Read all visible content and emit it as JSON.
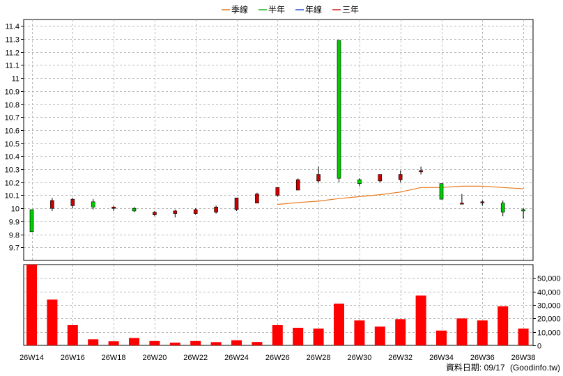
{
  "chart_data": {
    "type": "candlestick",
    "legend": [
      {
        "name": "季線",
        "color": "#e87a1e"
      },
      {
        "name": "半年",
        "color": "#22aa22"
      },
      {
        "name": "年線",
        "color": "#2255cc"
      },
      {
        "name": "三年",
        "color": "#cc2222"
      }
    ],
    "legend_position": "top-center",
    "grid": true,
    "price_axis": {
      "ylim": [
        9.6,
        11.45
      ],
      "ticks": [
        "9.7",
        "9.8",
        "9.9",
        "10",
        "10.1",
        "10.2",
        "10.3",
        "10.4",
        "10.5",
        "10.6",
        "10.7",
        "10.8",
        "10.9",
        "11",
        "11.1",
        "11.2",
        "11.3",
        "11.4"
      ]
    },
    "volume_axis": {
      "ylim": [
        0,
        60000
      ],
      "ticks": [
        "0",
        "10,000",
        "20,000",
        "30,000",
        "40,000",
        "50,000"
      ]
    },
    "x_tick_labels": [
      "26W14",
      "26W16",
      "26W18",
      "26W20",
      "26W22",
      "26W24",
      "26W26",
      "26W28",
      "26W30",
      "26W32",
      "26W34",
      "26W36",
      "26W38"
    ],
    "candles": [
      {
        "week": "26W14",
        "open": 9.99,
        "high": 9.99,
        "low": 9.82,
        "close": 9.82,
        "volume": 60000
      },
      {
        "week": "26W15",
        "open": 10.0,
        "high": 10.08,
        "low": 9.98,
        "close": 10.06,
        "volume": 34000
      },
      {
        "week": "26W16",
        "open": 10.02,
        "high": 10.08,
        "low": 10.0,
        "close": 10.07,
        "volume": 15000
      },
      {
        "week": "26W17",
        "open": 10.05,
        "high": 10.07,
        "low": 9.99,
        "close": 10.01,
        "volume": 4500
      },
      {
        "week": "26W18",
        "open": 10.0,
        "high": 10.02,
        "low": 9.98,
        "close": 10.01,
        "volume": 3000
      },
      {
        "week": "26W19",
        "open": 10.0,
        "high": 10.01,
        "low": 9.97,
        "close": 9.98,
        "volume": 5500
      },
      {
        "week": "26W20",
        "open": 9.95,
        "high": 9.98,
        "low": 9.94,
        "close": 9.97,
        "volume": 3200
      },
      {
        "week": "26W21",
        "open": 9.96,
        "high": 9.99,
        "low": 9.93,
        "close": 9.98,
        "volume": 2000
      },
      {
        "week": "26W22",
        "open": 9.96,
        "high": 10.0,
        "low": 9.95,
        "close": 9.99,
        "volume": 3200
      },
      {
        "week": "26W23",
        "open": 9.97,
        "high": 10.02,
        "low": 9.96,
        "close": 10.01,
        "volume": 2400
      },
      {
        "week": "26W24",
        "open": 9.99,
        "high": 10.08,
        "low": 9.98,
        "close": 10.08,
        "volume": 3800
      },
      {
        "week": "26W25",
        "open": 10.04,
        "high": 10.12,
        "low": 10.04,
        "close": 10.11,
        "volume": 2500
      },
      {
        "week": "26W26",
        "open": 10.1,
        "high": 10.16,
        "low": 10.09,
        "close": 10.16,
        "volume": 15000
      },
      {
        "week": "26W27",
        "open": 10.14,
        "high": 10.23,
        "low": 10.14,
        "close": 10.22,
        "volume": 13000
      },
      {
        "week": "26W28",
        "open": 10.21,
        "high": 10.32,
        "low": 10.2,
        "close": 10.26,
        "volume": 12500
      },
      {
        "week": "26W29",
        "open": 11.29,
        "high": 11.29,
        "low": 10.2,
        "close": 10.23,
        "volume": 31000
      },
      {
        "week": "26W30",
        "open": 10.22,
        "high": 10.23,
        "low": 10.17,
        "close": 10.19,
        "volume": 18500
      },
      {
        "week": "26W31",
        "open": 10.21,
        "high": 10.26,
        "low": 10.2,
        "close": 10.26,
        "volume": 14000
      },
      {
        "week": "26W32",
        "open": 10.22,
        "high": 10.29,
        "low": 10.2,
        "close": 10.26,
        "volume": 19500
      },
      {
        "week": "26W33",
        "open": 10.28,
        "high": 10.32,
        "low": 10.26,
        "close": 10.29,
        "volume": 37000
      },
      {
        "week": "26W34",
        "open": 10.19,
        "high": 10.19,
        "low": 10.07,
        "close": 10.07,
        "volume": 11000
      },
      {
        "week": "26W35",
        "open": 10.04,
        "high": 10.11,
        "low": 10.03,
        "close": 10.04,
        "volume": 20000
      },
      {
        "week": "26W36",
        "open": 10.05,
        "high": 10.06,
        "low": 10.02,
        "close": 10.05,
        "volume": 18500
      },
      {
        "week": "26W37",
        "open": 10.04,
        "high": 10.06,
        "low": 9.94,
        "close": 9.97,
        "volume": 29000
      },
      {
        "week": "26W38",
        "open": 9.99,
        "high": 10.0,
        "low": 9.92,
        "close": 9.98,
        "volume": 12500
      }
    ],
    "quarter_ma": [
      {
        "week": "26W26",
        "value": 10.03
      },
      {
        "week": "26W27",
        "value": 10.045
      },
      {
        "week": "26W28",
        "value": 10.055
      },
      {
        "week": "26W29",
        "value": 10.075
      },
      {
        "week": "26W30",
        "value": 10.09
      },
      {
        "week": "26W31",
        "value": 10.105
      },
      {
        "week": "26W32",
        "value": 10.125
      },
      {
        "week": "26W33",
        "value": 10.16
      },
      {
        "week": "26W34",
        "value": 10.16
      },
      {
        "week": "26W35",
        "value": 10.17
      },
      {
        "week": "26W36",
        "value": 10.17
      },
      {
        "week": "26W37",
        "value": 10.16
      },
      {
        "week": "26W38",
        "value": 10.15
      }
    ],
    "up_color": "#cc0000",
    "down_color": "#00cc00",
    "volume_color": "#ff0000"
  },
  "footer": {
    "date_label": "資料日期: 09/17",
    "source": "(Goodinfo.tw)"
  }
}
